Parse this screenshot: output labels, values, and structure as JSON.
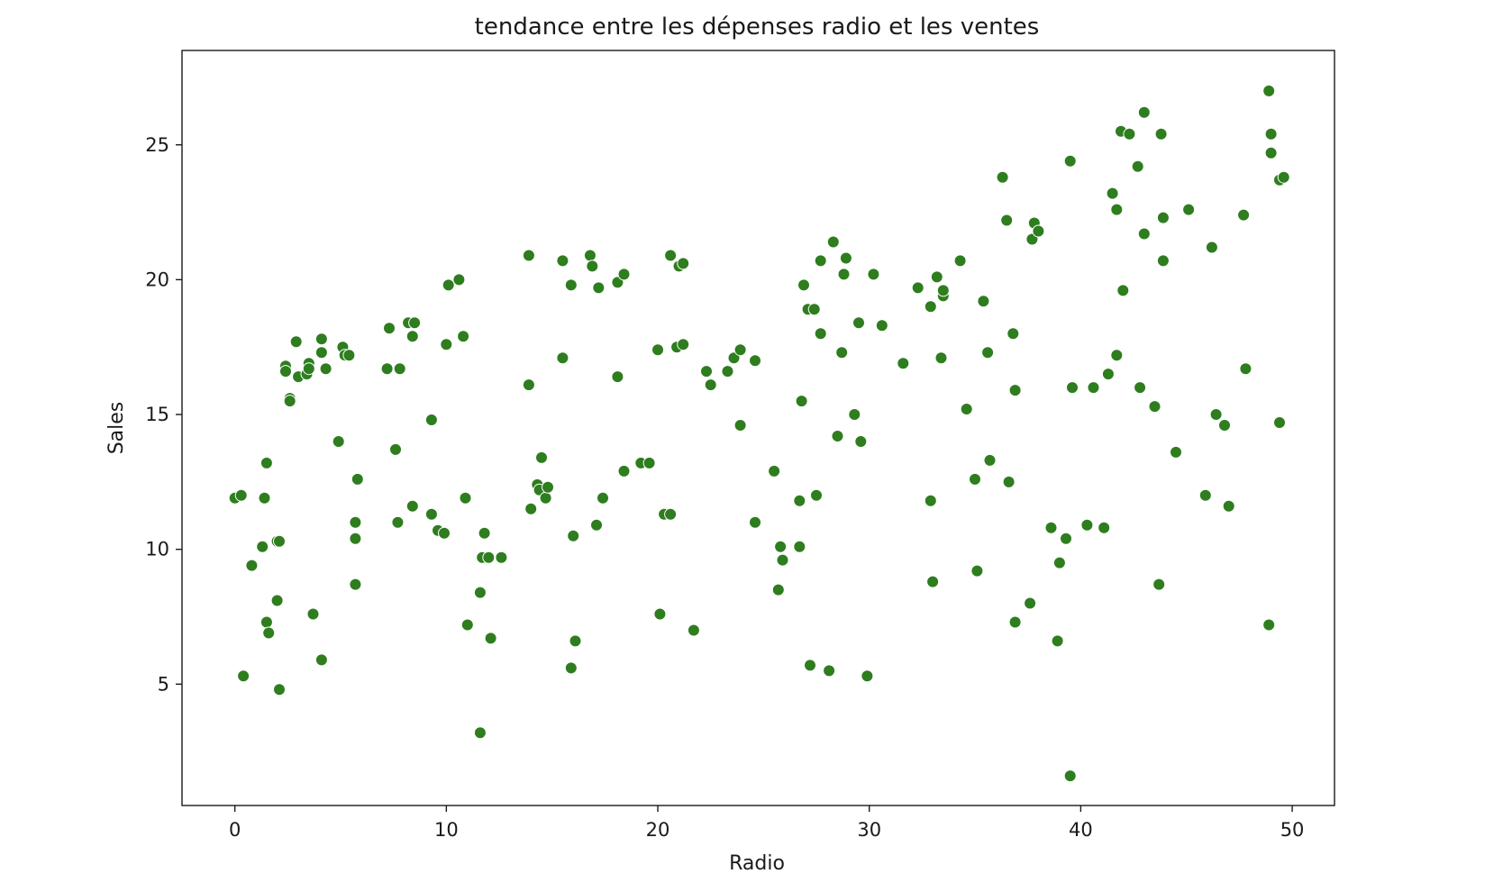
{
  "chart_data": {
    "type": "scatter",
    "title": "tendance entre les dépenses radio et les ventes",
    "xlabel": "Radio",
    "ylabel": "Sales",
    "xlim": [
      -2.5,
      52
    ],
    "ylim": [
      0.5,
      28.5
    ],
    "xticks": [
      0,
      10,
      20,
      30,
      40,
      50
    ],
    "yticks": [
      5,
      10,
      15,
      20,
      25
    ],
    "grid": false,
    "legend": "none",
    "marker_color": "#2e7d1e",
    "marker_edge": "#ffffff",
    "points": [
      [
        0.0,
        11.9
      ],
      [
        0.3,
        12.0
      ],
      [
        0.4,
        5.3
      ],
      [
        0.8,
        9.4
      ],
      [
        1.3,
        10.1
      ],
      [
        1.4,
        11.9
      ],
      [
        1.5,
        13.2
      ],
      [
        1.5,
        7.3
      ],
      [
        1.6,
        6.9
      ],
      [
        2.0,
        10.3
      ],
      [
        2.1,
        10.3
      ],
      [
        2.0,
        8.1
      ],
      [
        2.1,
        4.8
      ],
      [
        2.4,
        16.8
      ],
      [
        2.4,
        16.6
      ],
      [
        2.6,
        15.6
      ],
      [
        2.6,
        15.5
      ],
      [
        2.9,
        17.7
      ],
      [
        3.0,
        16.4
      ],
      [
        3.4,
        16.5
      ],
      [
        3.5,
        16.9
      ],
      [
        3.5,
        16.7
      ],
      [
        3.7,
        7.6
      ],
      [
        4.1,
        5.9
      ],
      [
        4.1,
        17.8
      ],
      [
        4.1,
        17.3
      ],
      [
        4.3,
        16.7
      ],
      [
        4.9,
        14.0
      ],
      [
        5.1,
        17.5
      ],
      [
        5.2,
        17.2
      ],
      [
        5.4,
        17.2
      ],
      [
        5.7,
        11.0
      ],
      [
        5.7,
        10.4
      ],
      [
        5.8,
        12.6
      ],
      [
        5.7,
        8.7
      ],
      [
        7.3,
        18.2
      ],
      [
        7.2,
        16.7
      ],
      [
        7.6,
        13.7
      ],
      [
        7.7,
        11.0
      ],
      [
        7.8,
        16.7
      ],
      [
        8.2,
        18.4
      ],
      [
        8.4,
        17.9
      ],
      [
        8.5,
        18.4
      ],
      [
        8.4,
        11.6
      ],
      [
        9.3,
        14.8
      ],
      [
        9.3,
        11.3
      ],
      [
        9.6,
        10.7
      ],
      [
        9.9,
        10.6
      ],
      [
        10.0,
        17.6
      ],
      [
        10.1,
        19.8
      ],
      [
        10.6,
        20.0
      ],
      [
        10.8,
        17.9
      ],
      [
        10.9,
        11.9
      ],
      [
        11.0,
        7.2
      ],
      [
        11.6,
        8.4
      ],
      [
        11.6,
        3.2
      ],
      [
        11.7,
        9.7
      ],
      [
        11.8,
        10.6
      ],
      [
        12.0,
        9.7
      ],
      [
        12.1,
        6.7
      ],
      [
        12.6,
        9.7
      ],
      [
        13.9,
        20.9
      ],
      [
        13.9,
        16.1
      ],
      [
        14.0,
        11.5
      ],
      [
        14.3,
        12.4
      ],
      [
        14.4,
        12.2
      ],
      [
        14.5,
        13.4
      ],
      [
        14.7,
        11.9
      ],
      [
        14.8,
        12.3
      ],
      [
        15.5,
        17.1
      ],
      [
        15.5,
        20.7
      ],
      [
        15.9,
        19.8
      ],
      [
        15.9,
        5.6
      ],
      [
        16.0,
        10.5
      ],
      [
        16.1,
        6.6
      ],
      [
        16.8,
        20.9
      ],
      [
        16.9,
        20.5
      ],
      [
        17.1,
        10.9
      ],
      [
        17.2,
        19.7
      ],
      [
        17.4,
        11.9
      ],
      [
        18.1,
        16.4
      ],
      [
        18.1,
        19.9
      ],
      [
        18.4,
        20.2
      ],
      [
        18.4,
        12.9
      ],
      [
        19.2,
        13.2
      ],
      [
        19.6,
        13.2
      ],
      [
        20.0,
        17.4
      ],
      [
        20.1,
        7.6
      ],
      [
        20.3,
        11.3
      ],
      [
        20.6,
        11.3
      ],
      [
        20.6,
        20.9
      ],
      [
        20.9,
        17.5
      ],
      [
        21.0,
        20.5
      ],
      [
        21.2,
        20.6
      ],
      [
        21.2,
        17.6
      ],
      [
        21.7,
        7.0
      ],
      [
        22.3,
        16.6
      ],
      [
        22.5,
        16.1
      ],
      [
        23.3,
        16.6
      ],
      [
        23.6,
        17.1
      ],
      [
        23.9,
        17.4
      ],
      [
        23.9,
        14.6
      ],
      [
        24.6,
        17.0
      ],
      [
        24.6,
        11.0
      ],
      [
        25.5,
        12.9
      ],
      [
        25.7,
        8.5
      ],
      [
        25.8,
        10.1
      ],
      [
        25.9,
        9.6
      ],
      [
        26.7,
        10.1
      ],
      [
        26.7,
        11.8
      ],
      [
        26.8,
        15.5
      ],
      [
        26.9,
        19.8
      ],
      [
        27.1,
        18.9
      ],
      [
        27.4,
        18.9
      ],
      [
        27.5,
        12.0
      ],
      [
        27.2,
        5.7
      ],
      [
        27.7,
        18.0
      ],
      [
        27.7,
        20.7
      ],
      [
        28.1,
        5.5
      ],
      [
        28.3,
        21.4
      ],
      [
        28.5,
        14.2
      ],
      [
        28.7,
        17.3
      ],
      [
        28.8,
        20.2
      ],
      [
        28.9,
        20.8
      ],
      [
        29.3,
        15.0
      ],
      [
        29.5,
        18.4
      ],
      [
        29.6,
        14.0
      ],
      [
        29.9,
        5.3
      ],
      [
        30.2,
        20.2
      ],
      [
        30.6,
        18.3
      ],
      [
        31.6,
        16.9
      ],
      [
        32.3,
        19.7
      ],
      [
        32.9,
        11.8
      ],
      [
        32.9,
        19.0
      ],
      [
        33.0,
        8.8
      ],
      [
        33.2,
        20.1
      ],
      [
        33.4,
        17.1
      ],
      [
        33.5,
        19.4
      ],
      [
        33.5,
        19.6
      ],
      [
        34.3,
        20.7
      ],
      [
        34.6,
        15.2
      ],
      [
        35.0,
        12.6
      ],
      [
        35.1,
        9.2
      ],
      [
        35.4,
        19.2
      ],
      [
        35.6,
        17.3
      ],
      [
        35.7,
        13.3
      ],
      [
        36.3,
        23.8
      ],
      [
        36.5,
        22.2
      ],
      [
        36.6,
        12.5
      ],
      [
        36.8,
        18.0
      ],
      [
        36.9,
        15.9
      ],
      [
        36.9,
        7.3
      ],
      [
        37.6,
        8.0
      ],
      [
        37.7,
        21.5
      ],
      [
        37.8,
        22.1
      ],
      [
        38.0,
        21.8
      ],
      [
        38.6,
        10.8
      ],
      [
        38.9,
        6.6
      ],
      [
        39.0,
        9.5
      ],
      [
        39.3,
        10.4
      ],
      [
        39.5,
        24.4
      ],
      [
        39.5,
        1.6
      ],
      [
        39.6,
        16.0
      ],
      [
        40.3,
        10.9
      ],
      [
        40.6,
        16.0
      ],
      [
        41.1,
        10.8
      ],
      [
        41.3,
        16.5
      ],
      [
        41.5,
        23.2
      ],
      [
        41.7,
        22.6
      ],
      [
        41.7,
        17.2
      ],
      [
        41.9,
        25.5
      ],
      [
        42.0,
        19.6
      ],
      [
        42.3,
        25.4
      ],
      [
        42.7,
        24.2
      ],
      [
        42.8,
        16.0
      ],
      [
        43.0,
        26.2
      ],
      [
        43.0,
        21.7
      ],
      [
        43.5,
        15.3
      ],
      [
        43.7,
        8.7
      ],
      [
        43.8,
        25.4
      ],
      [
        43.9,
        22.3
      ],
      [
        43.9,
        20.7
      ],
      [
        44.5,
        13.6
      ],
      [
        45.1,
        22.6
      ],
      [
        45.9,
        12.0
      ],
      [
        46.2,
        21.2
      ],
      [
        46.4,
        15.0
      ],
      [
        46.8,
        14.6
      ],
      [
        47.0,
        11.6
      ],
      [
        47.7,
        22.4
      ],
      [
        47.8,
        16.7
      ],
      [
        48.9,
        27.0
      ],
      [
        48.9,
        7.2
      ],
      [
        49.0,
        25.4
      ],
      [
        49.0,
        24.7
      ],
      [
        49.4,
        23.7
      ],
      [
        49.6,
        23.8
      ],
      [
        49.4,
        14.7
      ]
    ]
  }
}
